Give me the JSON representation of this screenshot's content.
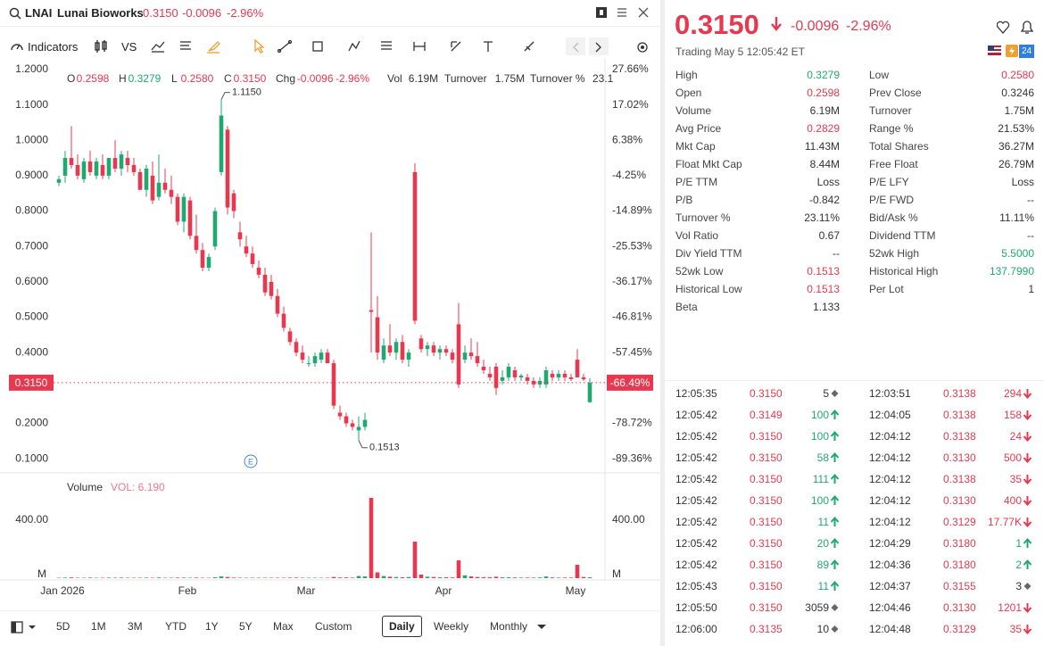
{
  "header": {
    "symbol": "LNAI",
    "name": "Lunai Bioworks",
    "price": "0.3150",
    "change": "-0.0096",
    "change_pct": "-2.96%"
  },
  "toolbar": {
    "indicators": "Indicators",
    "compare": "VS"
  },
  "info_row": [
    {
      "k": "O",
      "v": "0.2598",
      "tone": "down"
    },
    {
      "k": "H",
      "v": "0.3279",
      "tone": "up"
    },
    {
      "k": "L",
      "v": "0.2580",
      "tone": "down"
    },
    {
      "k": "C",
      "v": "0.3150",
      "tone": "down"
    },
    {
      "k": "Chg",
      "v": "-0.0096",
      "tone": "down"
    },
    {
      "k": "",
      "v": "-2.96%",
      "tone": "down"
    },
    {
      "k": "Vol",
      "v": "6.19M"
    },
    {
      "k": "Turnover",
      "v": "1.75M"
    },
    {
      "k": "Turnover %",
      "v": "23.1"
    }
  ],
  "chart_data": {
    "type": "candlestick",
    "colors": {
      "up": "#1fa971",
      "down": "#e8384f"
    },
    "ylim": [
      0.065,
      1.22
    ],
    "yticks": [
      {
        "value": 1.2,
        "label": "1.2000"
      },
      {
        "value": 1.1,
        "label": "1.1000"
      },
      {
        "value": 1.0,
        "label": "1.0000"
      },
      {
        "value": 0.9,
        "label": "0.9000"
      },
      {
        "value": 0.8,
        "label": "0.8000"
      },
      {
        "value": 0.7,
        "label": "0.7000"
      },
      {
        "value": 0.6,
        "label": "0.6000"
      },
      {
        "value": 0.5,
        "label": "0.5000"
      },
      {
        "value": 0.4,
        "label": "0.4000"
      },
      {
        "value": 0.2,
        "label": "0.2000"
      },
      {
        "value": 0.1,
        "label": "0.1000"
      }
    ],
    "y2lim": [
      -93.08,
      29.79
    ],
    "y2ticks": [
      {
        "value": 27.66,
        "label": "27.66%"
      },
      {
        "value": 17.02,
        "label": "17.02%"
      },
      {
        "value": 6.38,
        "label": "6.38%"
      },
      {
        "value": -4.25,
        "label": "-4.25%"
      },
      {
        "value": -14.89,
        "label": "-14.89%"
      },
      {
        "value": -25.53,
        "label": "-25.53%"
      },
      {
        "value": -36.17,
        "label": "-36.17%"
      },
      {
        "value": -46.81,
        "label": "-46.81%"
      },
      {
        "value": -57.45,
        "label": "-57.45%"
      },
      {
        "value": -78.72,
        "label": "-78.72%"
      },
      {
        "value": -89.36,
        "label": "-89.36%"
      }
    ],
    "last": {
      "value": 0.315,
      "label": "0.3150"
    },
    "last_pct": {
      "value": -66.49,
      "label": "-66.49%"
    },
    "high_label": "1.1150",
    "low_label": "0.1513",
    "event_marker": "E",
    "x_labels": [
      "Jan 2026",
      "Feb",
      "Mar",
      "Apr",
      "May"
    ],
    "candles": [
      [
        0.88,
        0.9,
        0.87,
        0.89
      ],
      [
        0.9,
        0.97,
        0.88,
        0.95
      ],
      [
        0.95,
        1.04,
        0.92,
        0.93
      ],
      [
        0.93,
        0.96,
        0.89,
        0.9
      ],
      [
        0.89,
        0.95,
        0.88,
        0.94
      ],
      [
        0.94,
        0.97,
        0.9,
        0.91
      ],
      [
        0.9,
        0.95,
        0.89,
        0.94
      ],
      [
        0.93,
        0.96,
        0.89,
        0.9
      ],
      [
        0.9,
        0.95,
        0.89,
        0.95
      ],
      [
        0.95,
        1.0,
        0.91,
        0.92
      ],
      [
        0.92,
        0.97,
        0.9,
        0.96
      ],
      [
        0.95,
        0.97,
        0.91,
        0.93
      ],
      [
        0.93,
        0.95,
        0.9,
        0.91
      ],
      [
        0.91,
        0.92,
        0.86,
        0.86
      ],
      [
        0.86,
        0.93,
        0.84,
        0.92
      ],
      [
        0.9,
        0.94,
        0.82,
        0.83
      ],
      [
        0.84,
        0.96,
        0.83,
        0.88
      ],
      [
        0.88,
        0.92,
        0.85,
        0.86
      ],
      [
        0.86,
        0.9,
        0.82,
        0.84
      ],
      [
        0.84,
        0.85,
        0.76,
        0.77
      ],
      [
        0.77,
        0.85,
        0.74,
        0.84
      ],
      [
        0.83,
        0.84,
        0.72,
        0.73
      ],
      [
        0.73,
        0.79,
        0.68,
        0.69
      ],
      [
        0.69,
        0.71,
        0.63,
        0.64
      ],
      [
        0.64,
        0.68,
        0.63,
        0.67
      ],
      [
        0.7,
        0.81,
        0.69,
        0.8
      ],
      [
        0.91,
        1.115,
        0.9,
        1.07
      ],
      [
        1.03,
        1.04,
        0.79,
        0.81
      ],
      [
        0.85,
        0.86,
        0.78,
        0.8
      ],
      [
        0.74,
        0.77,
        0.7,
        0.72
      ],
      [
        0.7,
        0.73,
        0.67,
        0.68
      ],
      [
        0.68,
        0.7,
        0.64,
        0.65
      ],
      [
        0.64,
        0.66,
        0.61,
        0.62
      ],
      [
        0.62,
        0.64,
        0.56,
        0.57
      ],
      [
        0.6,
        0.62,
        0.55,
        0.56
      ],
      [
        0.56,
        0.58,
        0.5,
        0.51
      ],
      [
        0.51,
        0.53,
        0.46,
        0.47
      ],
      [
        0.46,
        0.47,
        0.42,
        0.43
      ],
      [
        0.43,
        0.44,
        0.39,
        0.4
      ],
      [
        0.4,
        0.42,
        0.37,
        0.38
      ],
      [
        0.37,
        0.39,
        0.36,
        0.37
      ],
      [
        0.37,
        0.4,
        0.36,
        0.39
      ],
      [
        0.38,
        0.41,
        0.37,
        0.4
      ],
      [
        0.4,
        0.41,
        0.37,
        0.37
      ],
      [
        0.37,
        0.38,
        0.24,
        0.25
      ],
      [
        0.23,
        0.25,
        0.21,
        0.22
      ],
      [
        0.22,
        0.23,
        0.19,
        0.2
      ],
      [
        0.2,
        0.21,
        0.18,
        0.19
      ],
      [
        0.18,
        0.22,
        0.1513,
        0.19
      ],
      [
        0.19,
        0.23,
        0.18,
        0.21
      ],
      [
        0.52,
        0.74,
        0.4,
        0.515
      ],
      [
        0.5,
        0.56,
        0.38,
        0.4
      ],
      [
        0.38,
        0.44,
        0.37,
        0.42
      ],
      [
        0.42,
        0.48,
        0.39,
        0.4
      ],
      [
        0.4,
        0.44,
        0.38,
        0.43
      ],
      [
        0.43,
        0.45,
        0.37,
        0.38
      ],
      [
        0.38,
        0.41,
        0.36,
        0.4
      ],
      [
        0.91,
        0.935,
        0.48,
        0.49
      ],
      [
        0.44,
        0.45,
        0.4,
        0.41
      ],
      [
        0.41,
        0.43,
        0.39,
        0.42
      ],
      [
        0.42,
        0.43,
        0.39,
        0.4
      ],
      [
        0.4,
        0.42,
        0.38,
        0.41
      ],
      [
        0.41,
        0.42,
        0.39,
        0.4
      ],
      [
        0.4,
        0.41,
        0.37,
        0.38
      ],
      [
        0.48,
        0.54,
        0.3,
        0.31
      ],
      [
        0.38,
        0.42,
        0.37,
        0.4
      ],
      [
        0.4,
        0.44,
        0.38,
        0.39
      ],
      [
        0.39,
        0.43,
        0.36,
        0.37
      ],
      [
        0.36,
        0.38,
        0.34,
        0.35
      ],
      [
        0.34,
        0.36,
        0.32,
        0.33
      ],
      [
        0.36,
        0.37,
        0.28,
        0.3
      ],
      [
        0.32,
        0.35,
        0.31,
        0.33
      ],
      [
        0.33,
        0.37,
        0.32,
        0.36
      ],
      [
        0.35,
        0.36,
        0.32,
        0.33
      ],
      [
        0.33,
        0.34,
        0.32,
        0.335
      ],
      [
        0.33,
        0.34,
        0.31,
        0.32
      ],
      [
        0.32,
        0.33,
        0.3,
        0.31
      ],
      [
        0.31,
        0.33,
        0.3,
        0.32
      ],
      [
        0.31,
        0.36,
        0.3,
        0.35
      ],
      [
        0.34,
        0.35,
        0.32,
        0.33
      ],
      [
        0.33,
        0.35,
        0.32,
        0.34
      ],
      [
        0.34,
        0.35,
        0.32,
        0.33
      ],
      [
        0.33,
        0.34,
        0.32,
        0.325
      ],
      [
        0.38,
        0.41,
        0.33,
        0.33
      ],
      [
        0.33,
        0.34,
        0.32,
        0.3246
      ],
      [
        0.2598,
        0.3279,
        0.258,
        0.315
      ]
    ],
    "volume": {
      "title": "Volume",
      "indicator": "VOL: 6.190",
      "ylim": [
        0,
        664
      ],
      "yticks": [
        {
          "value": 400,
          "label": "400.00"
        }
      ],
      "unit": "M",
      "values": [
        3,
        4,
        5,
        3,
        3,
        4,
        3,
        3,
        4,
        3,
        4,
        3,
        3,
        3,
        4,
        3,
        5,
        3,
        3,
        4,
        4,
        3,
        4,
        3,
        3,
        6,
        12,
        8,
        4,
        3,
        3,
        3,
        3,
        3,
        3,
        3,
        3,
        4,
        4,
        3,
        3,
        3,
        3,
        3,
        8,
        5,
        5,
        4,
        15,
        12,
        553,
        40,
        15,
        10,
        8,
        6,
        8,
        252,
        25,
        10,
        8,
        6,
        6,
        5,
        123,
        20,
        12,
        8,
        7,
        6,
        10,
        6,
        6,
        5,
        4,
        4,
        4,
        5,
        12,
        5,
        4,
        4,
        4,
        92,
        8,
        6.19
      ]
    }
  },
  "bottom": {
    "ranges": [
      "5D",
      "1M",
      "3M",
      "YTD",
      "1Y",
      "5Y",
      "Max",
      "Custom"
    ],
    "periods": [
      "Daily",
      "Weekly",
      "Monthly"
    ]
  },
  "quote": {
    "price": "0.3150",
    "change": "-0.0096",
    "change_pct": "-2.96%",
    "status": "Trading May 5 12:05:42 ET",
    "badge": "24"
  },
  "stats": {
    "left": [
      {
        "label": "High",
        "value": "0.3279",
        "tone": "up"
      },
      {
        "label": "Open",
        "value": "0.2598",
        "tone": "down"
      },
      {
        "label": "Volume",
        "value": "6.19M"
      },
      {
        "label": "Avg Price",
        "value": "0.2829",
        "tone": "down"
      },
      {
        "label": "Mkt Cap",
        "value": "11.43M"
      },
      {
        "label": "Float Mkt Cap",
        "value": "8.44M"
      },
      {
        "label": "P/E TTM",
        "value": "Loss"
      },
      {
        "label": "P/B",
        "value": "-0.842"
      },
      {
        "label": "Turnover %",
        "value": "23.11%"
      },
      {
        "label": "Vol Ratio",
        "value": "0.67"
      },
      {
        "label": "Div Yield TTM",
        "value": "--"
      },
      {
        "label": "52wk Low",
        "value": "0.1513",
        "tone": "down"
      },
      {
        "label": "Historical Low",
        "value": "0.1513",
        "tone": "down"
      },
      {
        "label": "Beta",
        "value": "1.133"
      }
    ],
    "right": [
      {
        "label": "Low",
        "value": "0.2580",
        "tone": "down"
      },
      {
        "label": "Prev Close",
        "value": "0.3246"
      },
      {
        "label": "Turnover",
        "value": "1.75M"
      },
      {
        "label": "Range %",
        "value": "21.53%"
      },
      {
        "label": "Total Shares",
        "value": "36.27M"
      },
      {
        "label": "Free Float",
        "value": "26.79M"
      },
      {
        "label": "P/E LFY",
        "value": "Loss"
      },
      {
        "label": "P/E FWD",
        "value": "--"
      },
      {
        "label": "Bid/Ask %",
        "value": "11.11%"
      },
      {
        "label": "Dividend TTM",
        "value": "--"
      },
      {
        "label": "52wk High",
        "value": "5.5000",
        "tone": "up"
      },
      {
        "label": "Historical High",
        "value": "137.7990",
        "tone": "up"
      },
      {
        "label": "Per Lot",
        "value": "1"
      }
    ]
  },
  "trades": {
    "left": [
      [
        "12:05:35",
        "0.3150",
        "5",
        "flat"
      ],
      [
        "12:05:42",
        "0.3149",
        "100",
        "up"
      ],
      [
        "12:05:42",
        "0.3150",
        "100",
        "up"
      ],
      [
        "12:05:42",
        "0.3150",
        "58",
        "up"
      ],
      [
        "12:05:42",
        "0.3150",
        "111",
        "up"
      ],
      [
        "12:05:42",
        "0.3150",
        "100",
        "up"
      ],
      [
        "12:05:42",
        "0.3150",
        "11",
        "up"
      ],
      [
        "12:05:42",
        "0.3150",
        "20",
        "up"
      ],
      [
        "12:05:42",
        "0.3150",
        "89",
        "up"
      ],
      [
        "12:05:43",
        "0.3150",
        "11",
        "up"
      ],
      [
        "12:05:50",
        "0.3150",
        "3059",
        "flat"
      ],
      [
        "12:06:00",
        "0.3135",
        "10",
        "flat"
      ]
    ],
    "right": [
      [
        "12:03:51",
        "0.3138",
        "294",
        "down"
      ],
      [
        "12:04:05",
        "0.3138",
        "158",
        "down"
      ],
      [
        "12:04:12",
        "0.3138",
        "24",
        "down"
      ],
      [
        "12:04:12",
        "0.3130",
        "500",
        "down"
      ],
      [
        "12:04:12",
        "0.3138",
        "35",
        "down"
      ],
      [
        "12:04:12",
        "0.3130",
        "400",
        "down"
      ],
      [
        "12:04:12",
        "0.3129",
        "17.77K",
        "down"
      ],
      [
        "12:04:29",
        "0.3180",
        "1",
        "up"
      ],
      [
        "12:04:36",
        "0.3180",
        "2",
        "up"
      ],
      [
        "12:04:37",
        "0.3155",
        "3",
        "flat"
      ],
      [
        "12:04:46",
        "0.3130",
        "1201",
        "down"
      ],
      [
        "12:04:48",
        "0.3129",
        "35",
        "down"
      ]
    ]
  }
}
